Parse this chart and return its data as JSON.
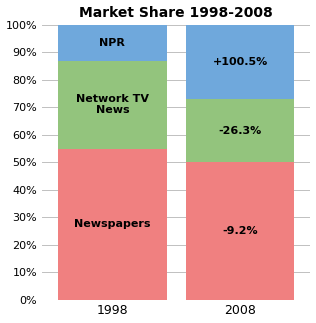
{
  "title": "Market Share 1998-2008",
  "years": [
    "1998",
    "2008"
  ],
  "newspapers_1998": 55,
  "network_tv_1998": 32,
  "npr_1998": 13,
  "newspapers_2008": 50,
  "network_tv_2008": 23,
  "npr_2008": 27,
  "color_newspapers": "#F08080",
  "color_network_tv": "#93C47D",
  "color_npr": "#6FA8DC",
  "label_newspapers_1998": "Newspapers",
  "label_network_1998": "Network TV\nNews",
  "label_npr_1998": "NPR",
  "label_newspapers_2008": "-9.2%",
  "label_network_2008": "-26.3%",
  "label_npr_2008": "+100.5%",
  "ylabel_ticks": [
    0,
    10,
    20,
    30,
    40,
    50,
    60,
    70,
    80,
    90,
    100
  ],
  "bar_width": 0.85,
  "figsize": [
    3.16,
    3.23
  ],
  "dpi": 100
}
